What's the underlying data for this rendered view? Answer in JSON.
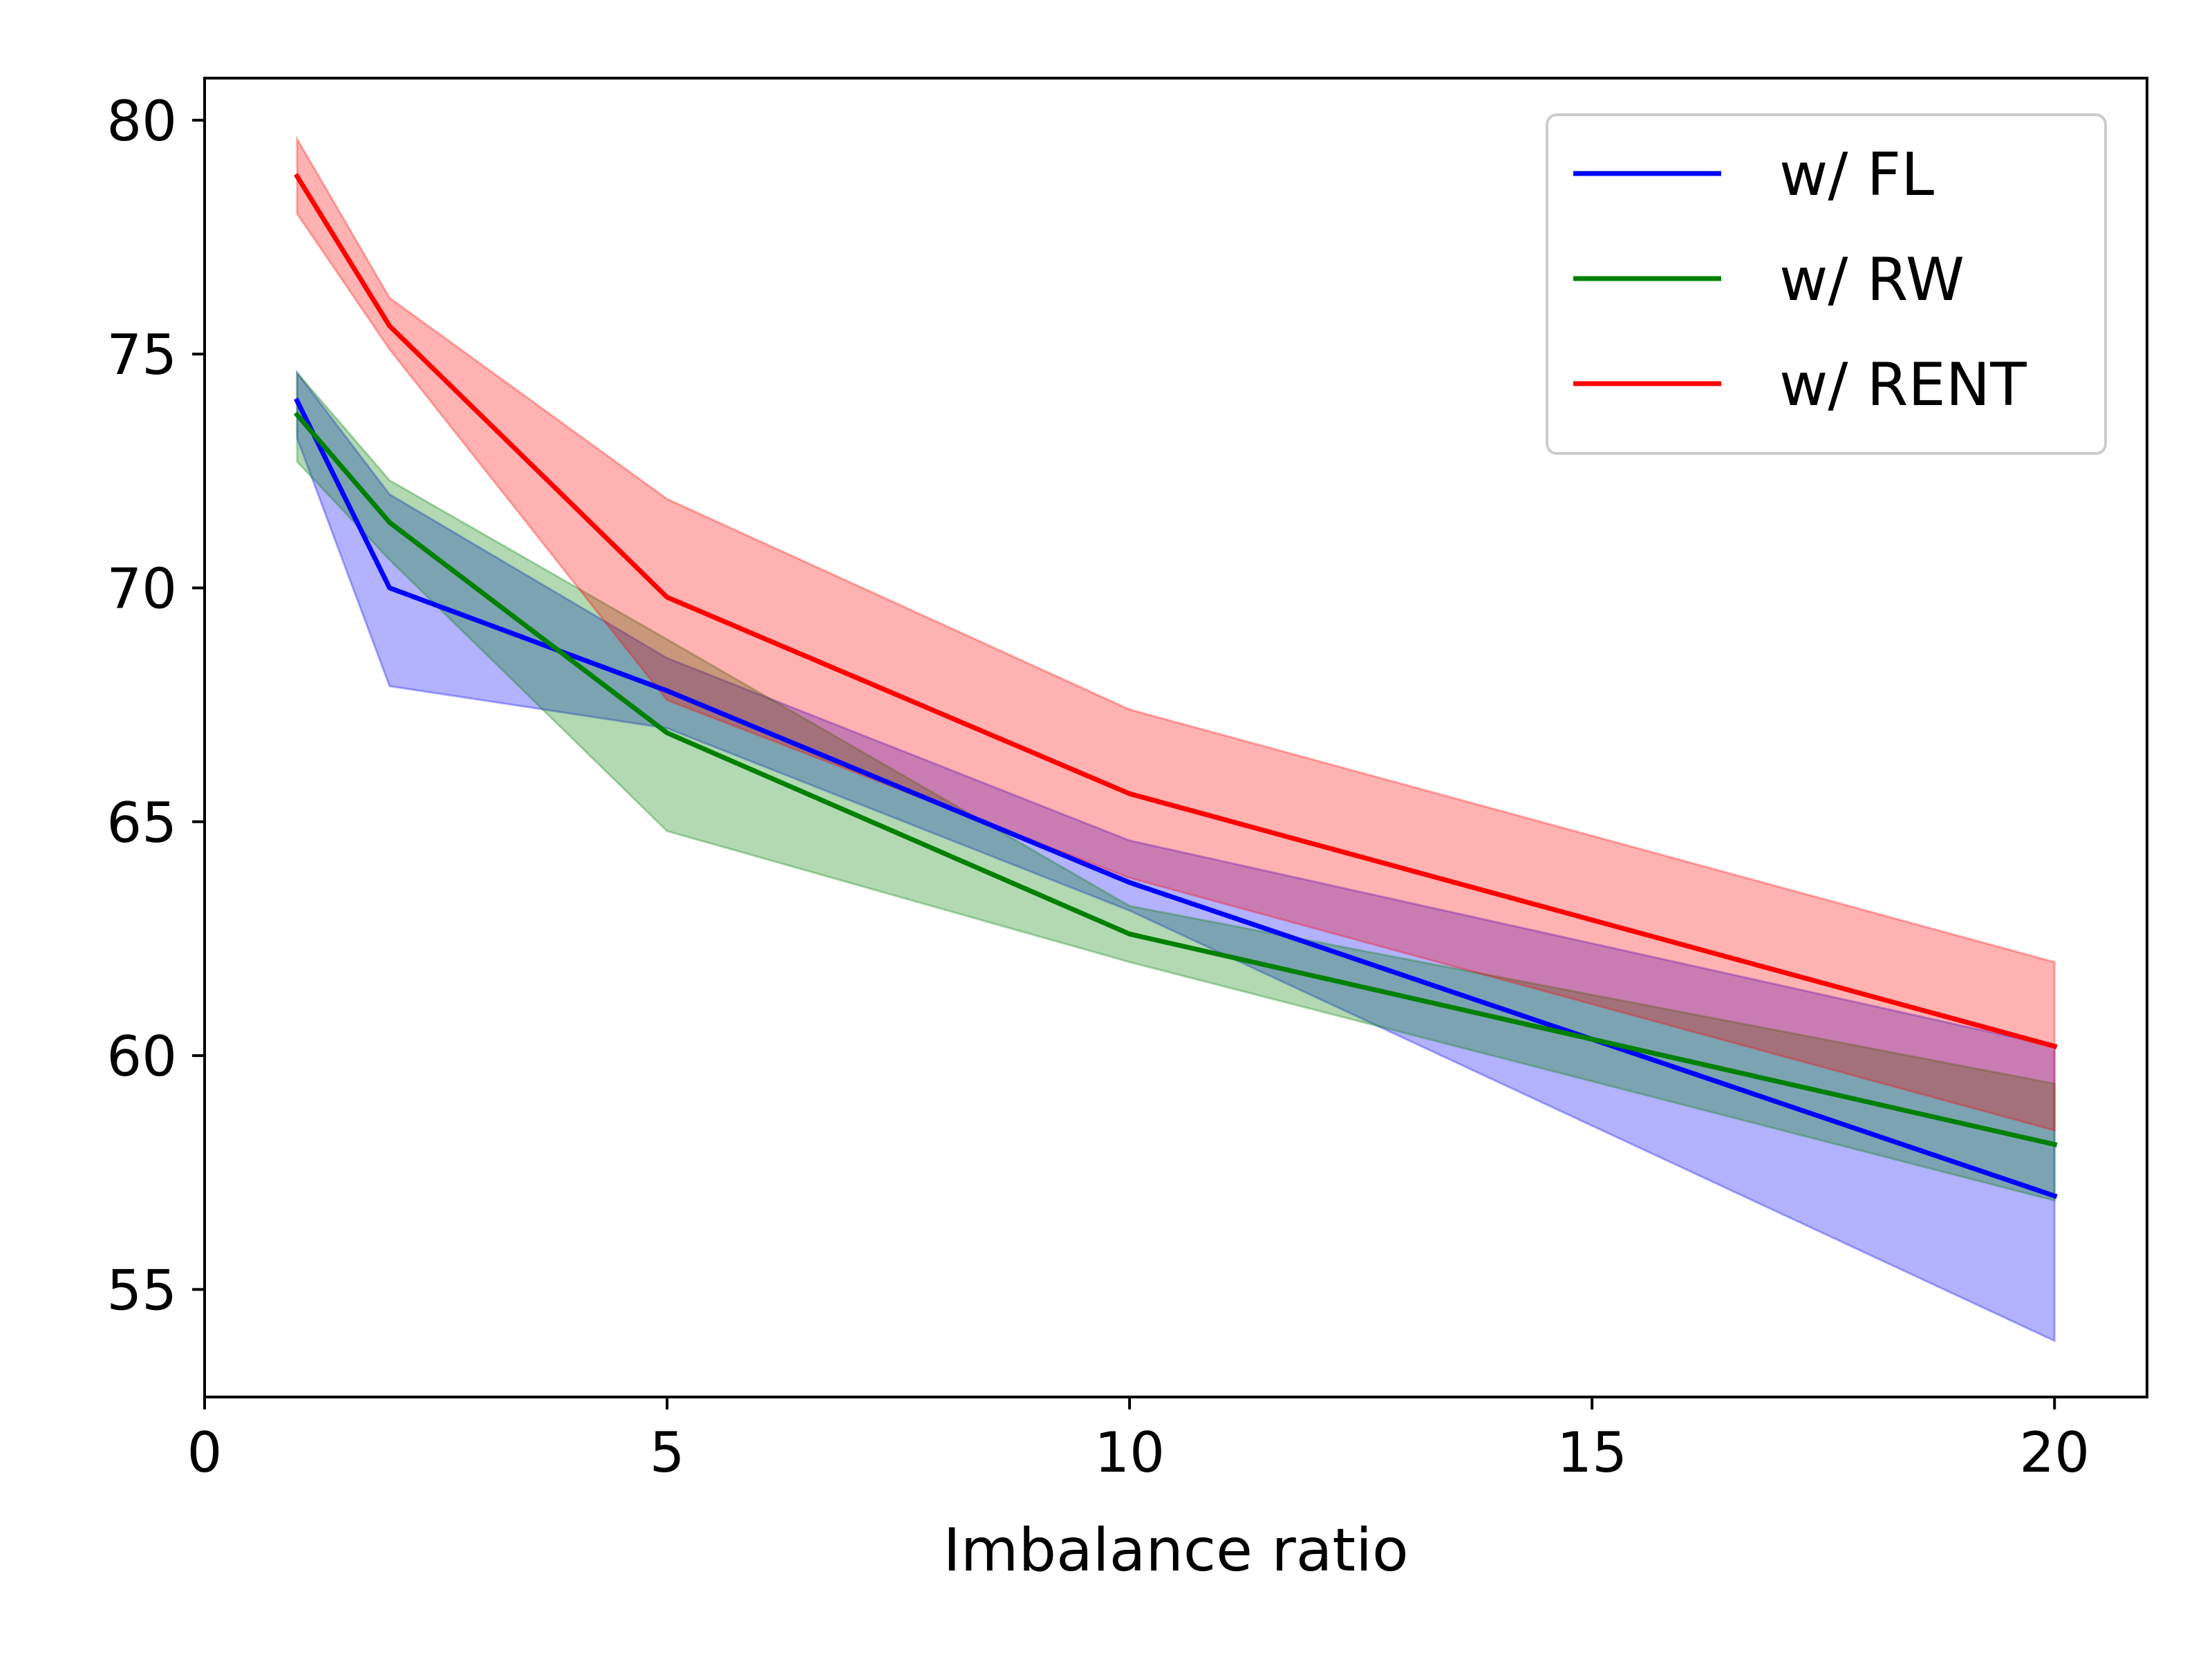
{
  "chart_data": {
    "type": "line",
    "title": "",
    "xlabel": "Imbalance ratio",
    "ylabel": "",
    "xlim": [
      0,
      21
    ],
    "ylim": [
      52.7,
      80.9
    ],
    "xticks": [
      0,
      5,
      10,
      15,
      20
    ],
    "yticks": [
      55,
      60,
      65,
      70,
      75,
      80
    ],
    "grid": false,
    "legend_position": "top-right",
    "x": [
      1,
      2,
      5,
      10,
      20
    ],
    "series": [
      {
        "name": "w/ FL",
        "color": "#0000ff",
        "values": [
          74.0,
          70.0,
          67.8,
          63.7,
          57.0
        ],
        "lower": [
          73.2,
          67.9,
          67.0,
          63.1,
          53.9
        ],
        "upper": [
          74.6,
          72.0,
          68.5,
          64.6,
          60.2
        ]
      },
      {
        "name": "w/ RW",
        "color": "#008000",
        "values": [
          73.7,
          71.4,
          66.9,
          62.6,
          58.1
        ],
        "lower": [
          72.7,
          70.6,
          64.8,
          62.0,
          56.9
        ],
        "upper": [
          74.6,
          72.3,
          68.9,
          63.2,
          59.4
        ]
      },
      {
        "name": "w/ RENT",
        "color": "#ff0000",
        "values": [
          78.8,
          75.6,
          69.8,
          65.6,
          60.2
        ],
        "lower": [
          78.0,
          75.1,
          67.6,
          63.8,
          58.4
        ],
        "upper": [
          79.6,
          76.2,
          71.9,
          67.4,
          62.0
        ]
      }
    ]
  }
}
